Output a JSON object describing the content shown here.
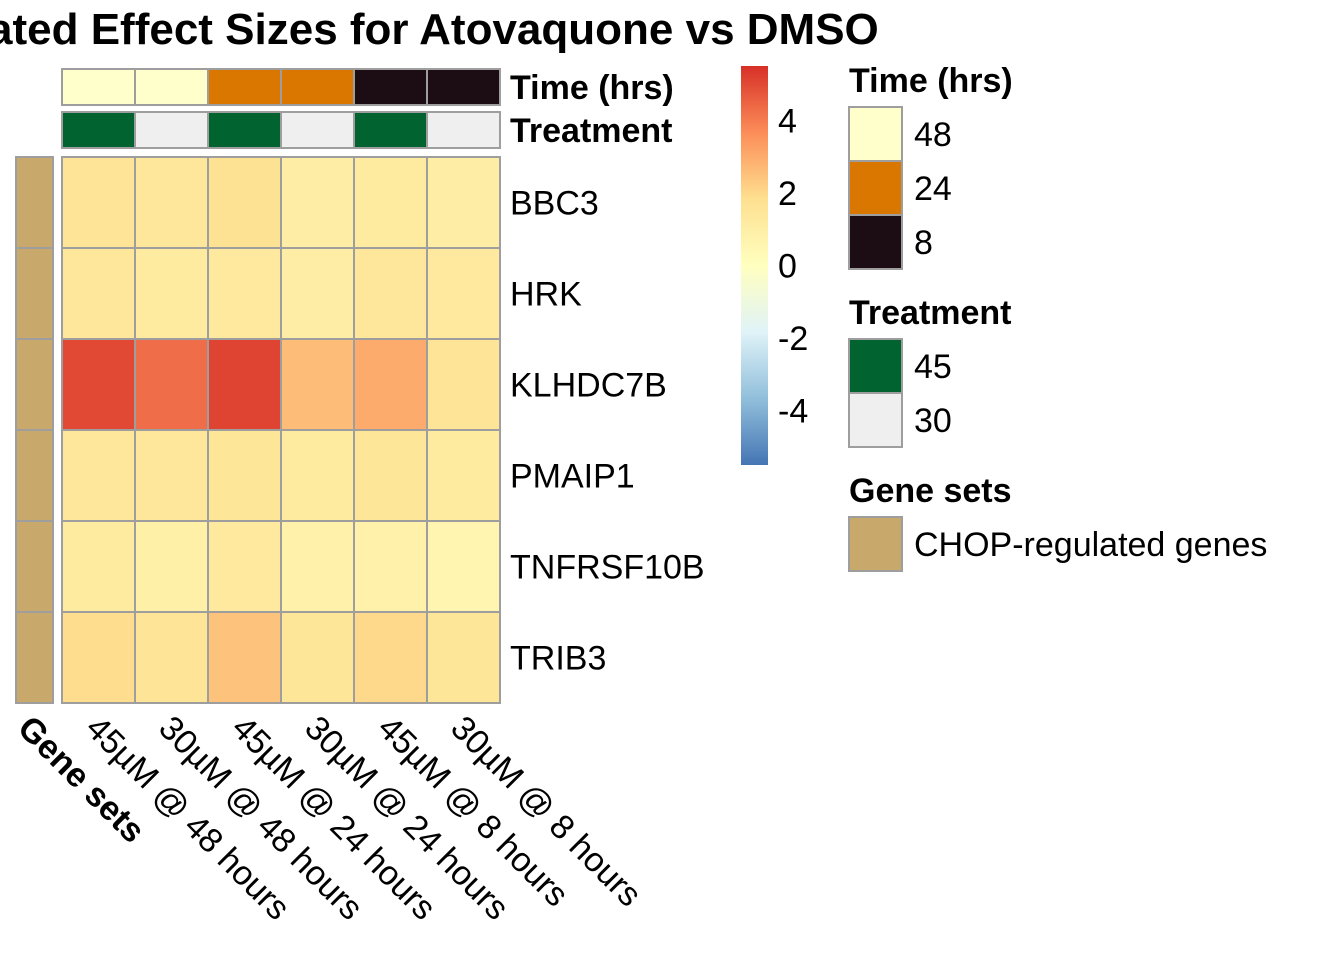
{
  "chart_data": {
    "type": "heatmap",
    "title": "ated Effect Sizes for Atovaquone vs DMSO",
    "rows": [
      "BBC3",
      "HRK",
      "KLHDC7B",
      "PMAIP1",
      "TNFRSF10B",
      "TRIB3"
    ],
    "columns": [
      "45µM @ 48 hours",
      "30µM @ 48 hours",
      "45µM @ 24 hours",
      "30µM @ 24 hours",
      "45µM @ 8 hours",
      "30µM @ 8 hours"
    ],
    "values": [
      [
        1.6,
        1.4,
        1.7,
        1.0,
        1.2,
        1.0
      ],
      [
        1.4,
        1.2,
        1.3,
        1.0,
        1.4,
        1.3
      ],
      [
        5.0,
        4.3,
        5.1,
        2.6,
        3.0,
        1.6
      ],
      [
        1.4,
        1.4,
        1.5,
        1.2,
        1.5,
        1.2
      ],
      [
        1.2,
        0.9,
        1.3,
        0.8,
        0.8,
        0.6
      ],
      [
        1.9,
        1.6,
        2.5,
        1.5,
        2.0,
        1.5
      ]
    ],
    "value_range": [
      -5.5,
      5.5
    ],
    "color_scale": [
      "#4575b4",
      "#91bfdb",
      "#e0f3f8",
      "#ffffbf",
      "#fee090",
      "#fc8d59",
      "#d73027"
    ],
    "colorbar_ticks": [
      4,
      2,
      0,
      -2,
      -4
    ],
    "column_annotations": [
      {
        "name": "Time (hrs)",
        "values": [
          "48",
          "48",
          "24",
          "24",
          "8",
          "8"
        ],
        "legend": [
          {
            "label": "48",
            "color": "#ffffcc"
          },
          {
            "label": "24",
            "color": "#d97700"
          },
          {
            "label": "8",
            "color": "#1c0c14"
          }
        ]
      },
      {
        "name": "Treatment",
        "values": [
          "45",
          "30",
          "45",
          "30",
          "45",
          "30"
        ],
        "legend": [
          {
            "label": "45",
            "color": "#006330"
          },
          {
            "label": "30",
            "color": "#efefef"
          }
        ]
      }
    ],
    "row_annotation": {
      "name": "Gene sets",
      "values": [
        "CHOP-regulated genes",
        "CHOP-regulated genes",
        "CHOP-regulated genes",
        "CHOP-regulated genes",
        "CHOP-regulated genes",
        "CHOP-regulated genes"
      ],
      "legend": [
        {
          "label": "CHOP-regulated genes",
          "color": "#c8a86b"
        }
      ]
    },
    "cell_border_color": "#9e9e9e"
  }
}
